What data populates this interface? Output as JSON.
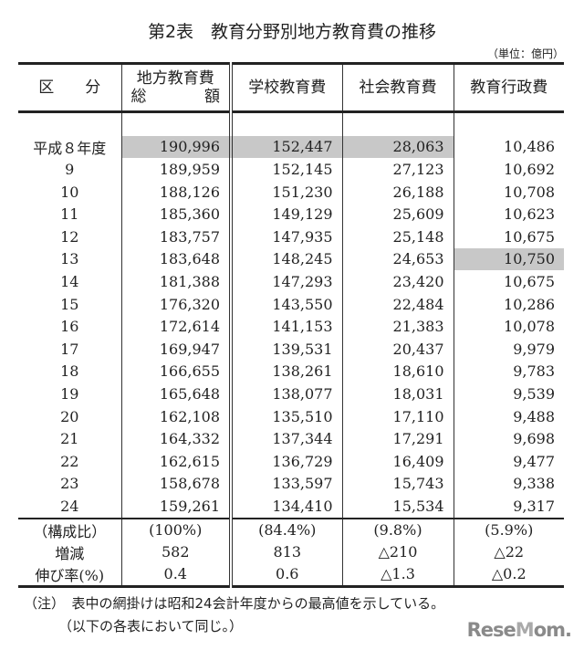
{
  "title": "第2表　教育分野別地方教育費の推移",
  "unit": "（単位：億円）",
  "highlight_color": "#c8c8c8",
  "headers": {
    "category": "区　　分",
    "total_line1": "地方教育費",
    "total_line2": "総　　額",
    "school": "学校教育費",
    "social": "社会教育費",
    "admin": "教育行政費"
  },
  "rows": [
    {
      "year": "平成８年度",
      "total": "190,996",
      "school": "152,447",
      "social": "28,063",
      "admin": "10,486"
    },
    {
      "year": "9",
      "total": "189,959",
      "school": "152,145",
      "social": "27,123",
      "admin": "10,692"
    },
    {
      "year": "10",
      "total": "188,126",
      "school": "151,230",
      "social": "26,188",
      "admin": "10,708"
    },
    {
      "year": "11",
      "total": "185,360",
      "school": "149,129",
      "social": "25,609",
      "admin": "10,623"
    },
    {
      "year": "12",
      "total": "183,757",
      "school": "147,935",
      "social": "25,148",
      "admin": "10,675"
    },
    {
      "year": "13",
      "total": "183,648",
      "school": "148,245",
      "social": "24,653",
      "admin": "10,750"
    },
    {
      "year": "14",
      "total": "181,388",
      "school": "147,293",
      "social": "23,420",
      "admin": "10,675"
    },
    {
      "year": "15",
      "total": "176,320",
      "school": "143,550",
      "social": "22,484",
      "admin": "10,286"
    },
    {
      "year": "16",
      "total": "172,614",
      "school": "141,153",
      "social": "21,383",
      "admin": "10,078"
    },
    {
      "year": "17",
      "total": "169,947",
      "school": "139,531",
      "social": "20,437",
      "admin": "9,979"
    },
    {
      "year": "18",
      "total": "166,655",
      "school": "138,261",
      "social": "18,610",
      "admin": "9,783"
    },
    {
      "year": "19",
      "total": "165,648",
      "school": "138,077",
      "social": "18,031",
      "admin": "9,539"
    },
    {
      "year": "20",
      "total": "162,108",
      "school": "135,510",
      "social": "17,110",
      "admin": "9,488"
    },
    {
      "year": "21",
      "total": "164,332",
      "school": "137,344",
      "social": "17,291",
      "admin": "9,698"
    },
    {
      "year": "22",
      "total": "162,615",
      "school": "136,729",
      "social": "16,409",
      "admin": "9,477"
    },
    {
      "year": "23",
      "total": "158,678",
      "school": "133,597",
      "social": "15,743",
      "admin": "9,338"
    },
    {
      "year": "24",
      "total": "159,261",
      "school": "134,410",
      "social": "15,534",
      "admin": "9,317"
    }
  ],
  "summary": [
    {
      "label": "（構成比）",
      "total": "(100%)",
      "school": "(84.4%)",
      "social": "(9.8%)",
      "admin": "(5.9%)"
    },
    {
      "label": "増減",
      "total": "582",
      "school": "813",
      "social": "△210",
      "admin": "△22"
    },
    {
      "label": "伸び率(%)",
      "total": "0.4",
      "school": "0.6",
      "social": "△1.3",
      "admin": "△0.2"
    }
  ],
  "notes": {
    "line1": "（注）　表中の網掛けは昭和24会計年度からの最高値を示している。",
    "line2": "（以下の各表において同じ。）"
  },
  "logo": "ReseMom"
}
